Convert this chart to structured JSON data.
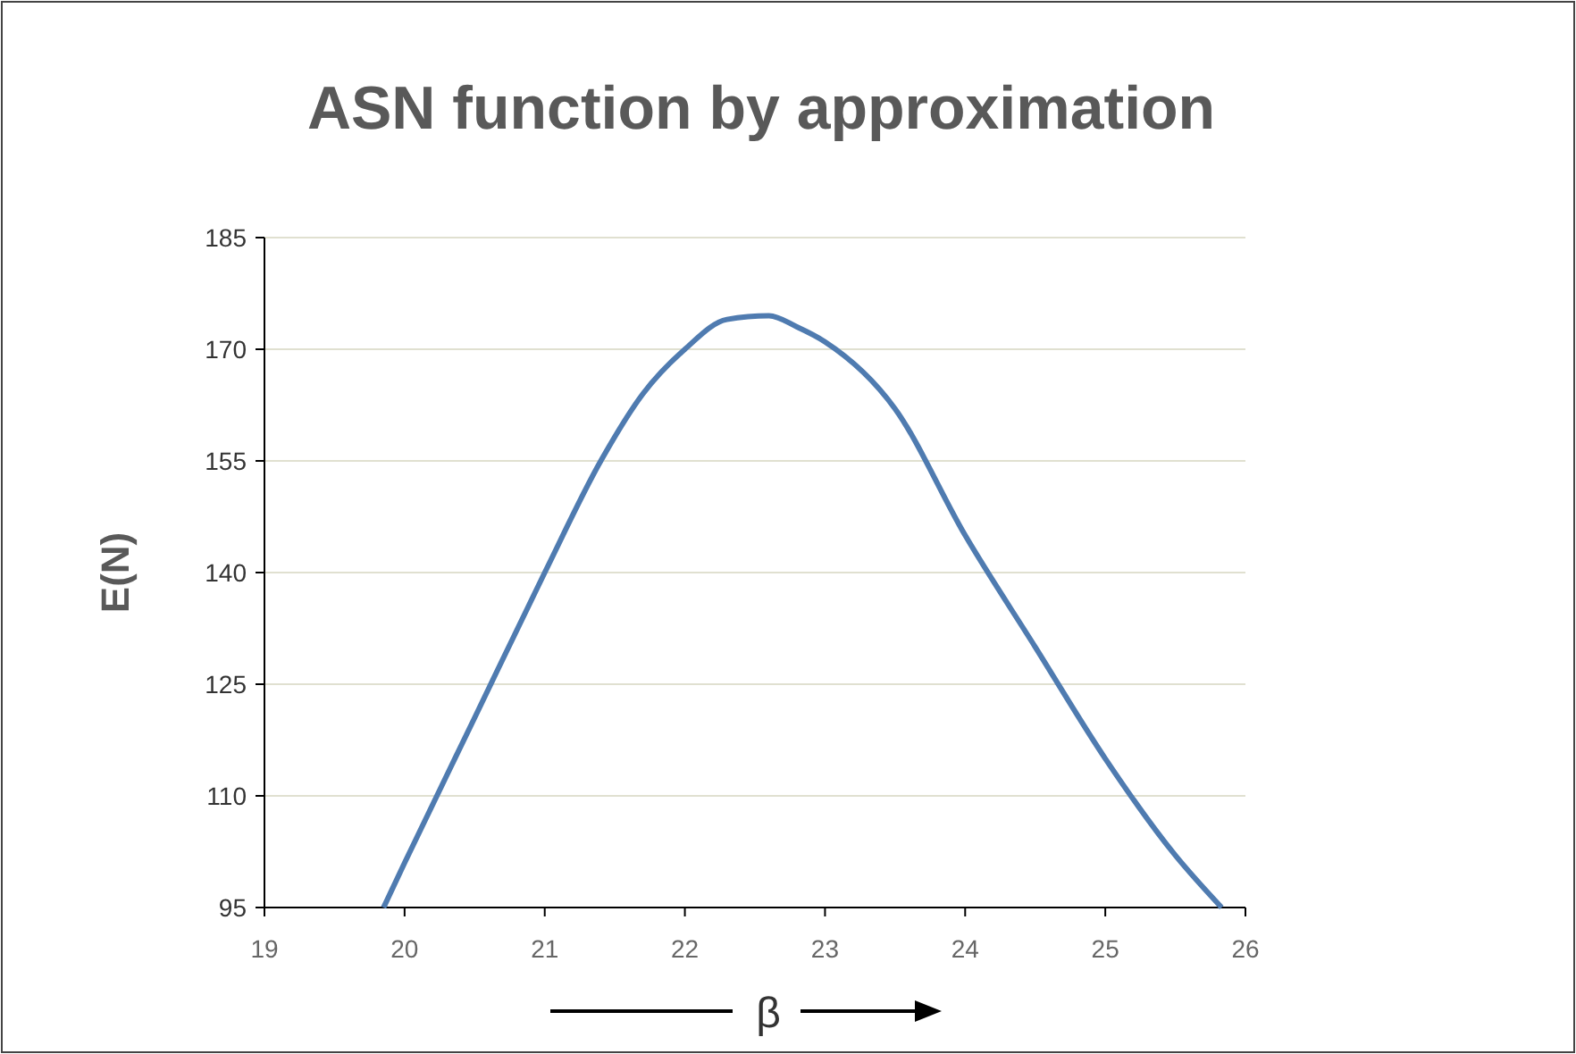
{
  "chart_data": {
    "type": "line",
    "title": "ASN function by approximation",
    "xlabel": "β",
    "ylabel": "E(N)",
    "x": [
      19.85,
      20.0,
      20.5,
      21.0,
      21.4,
      21.7,
      22.0,
      22.3,
      22.6,
      22.8,
      23.0,
      23.5,
      24.0,
      24.5,
      25.0,
      25.5,
      25.83
    ],
    "series": [
      {
        "color": "#4f7bb0",
        "values": [
          95,
          101,
          120.5,
          140,
          155,
          164,
          170,
          174,
          174.5,
          173,
          171,
          162,
          145,
          130,
          115,
          102,
          95
        ]
      }
    ],
    "xlim": [
      19,
      26
    ],
    "xticks": [
      19,
      20,
      21,
      22,
      23,
      24,
      25,
      26
    ],
    "ylim": [
      95,
      185
    ],
    "yticks": [
      95,
      110,
      125,
      140,
      155,
      170,
      185
    ],
    "grid": "y",
    "marker": "none",
    "line_style": "solid"
  }
}
